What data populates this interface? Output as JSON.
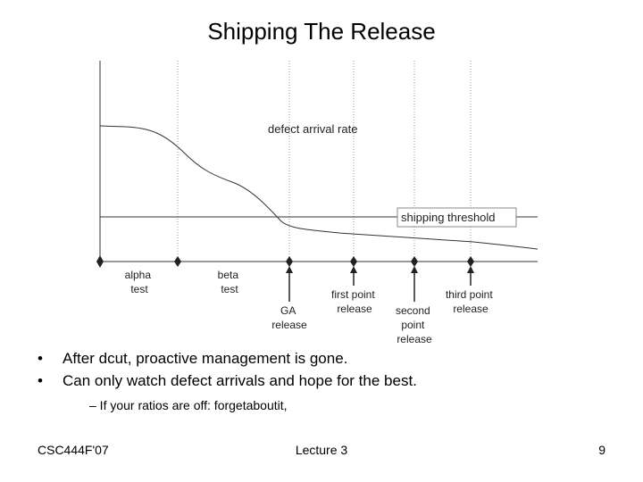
{
  "slide": {
    "title": "Shipping The Release",
    "bullets": [
      "After dcut, proactive management is gone.",
      "Can only watch defect arrivals and hope for the best."
    ],
    "sub_bullet": "– If your ratios are off: forgetaboutit,",
    "footer_left": "CSC444F'07",
    "footer_center": "Lecture 3",
    "footer_right": "9"
  },
  "diagram": {
    "curve_label": "defect arrival rate",
    "threshold_label": "shipping threshold",
    "milestones": [
      {
        "lines": [
          "alpha",
          "test"
        ]
      },
      {
        "lines": [
          "beta",
          "test"
        ]
      },
      {
        "lines": [
          "GA",
          "release"
        ]
      },
      {
        "lines": [
          "first point",
          "release"
        ]
      },
      {
        "lines": [
          "second",
          "point",
          "release"
        ]
      },
      {
        "lines": [
          "third point",
          "release"
        ]
      }
    ]
  }
}
